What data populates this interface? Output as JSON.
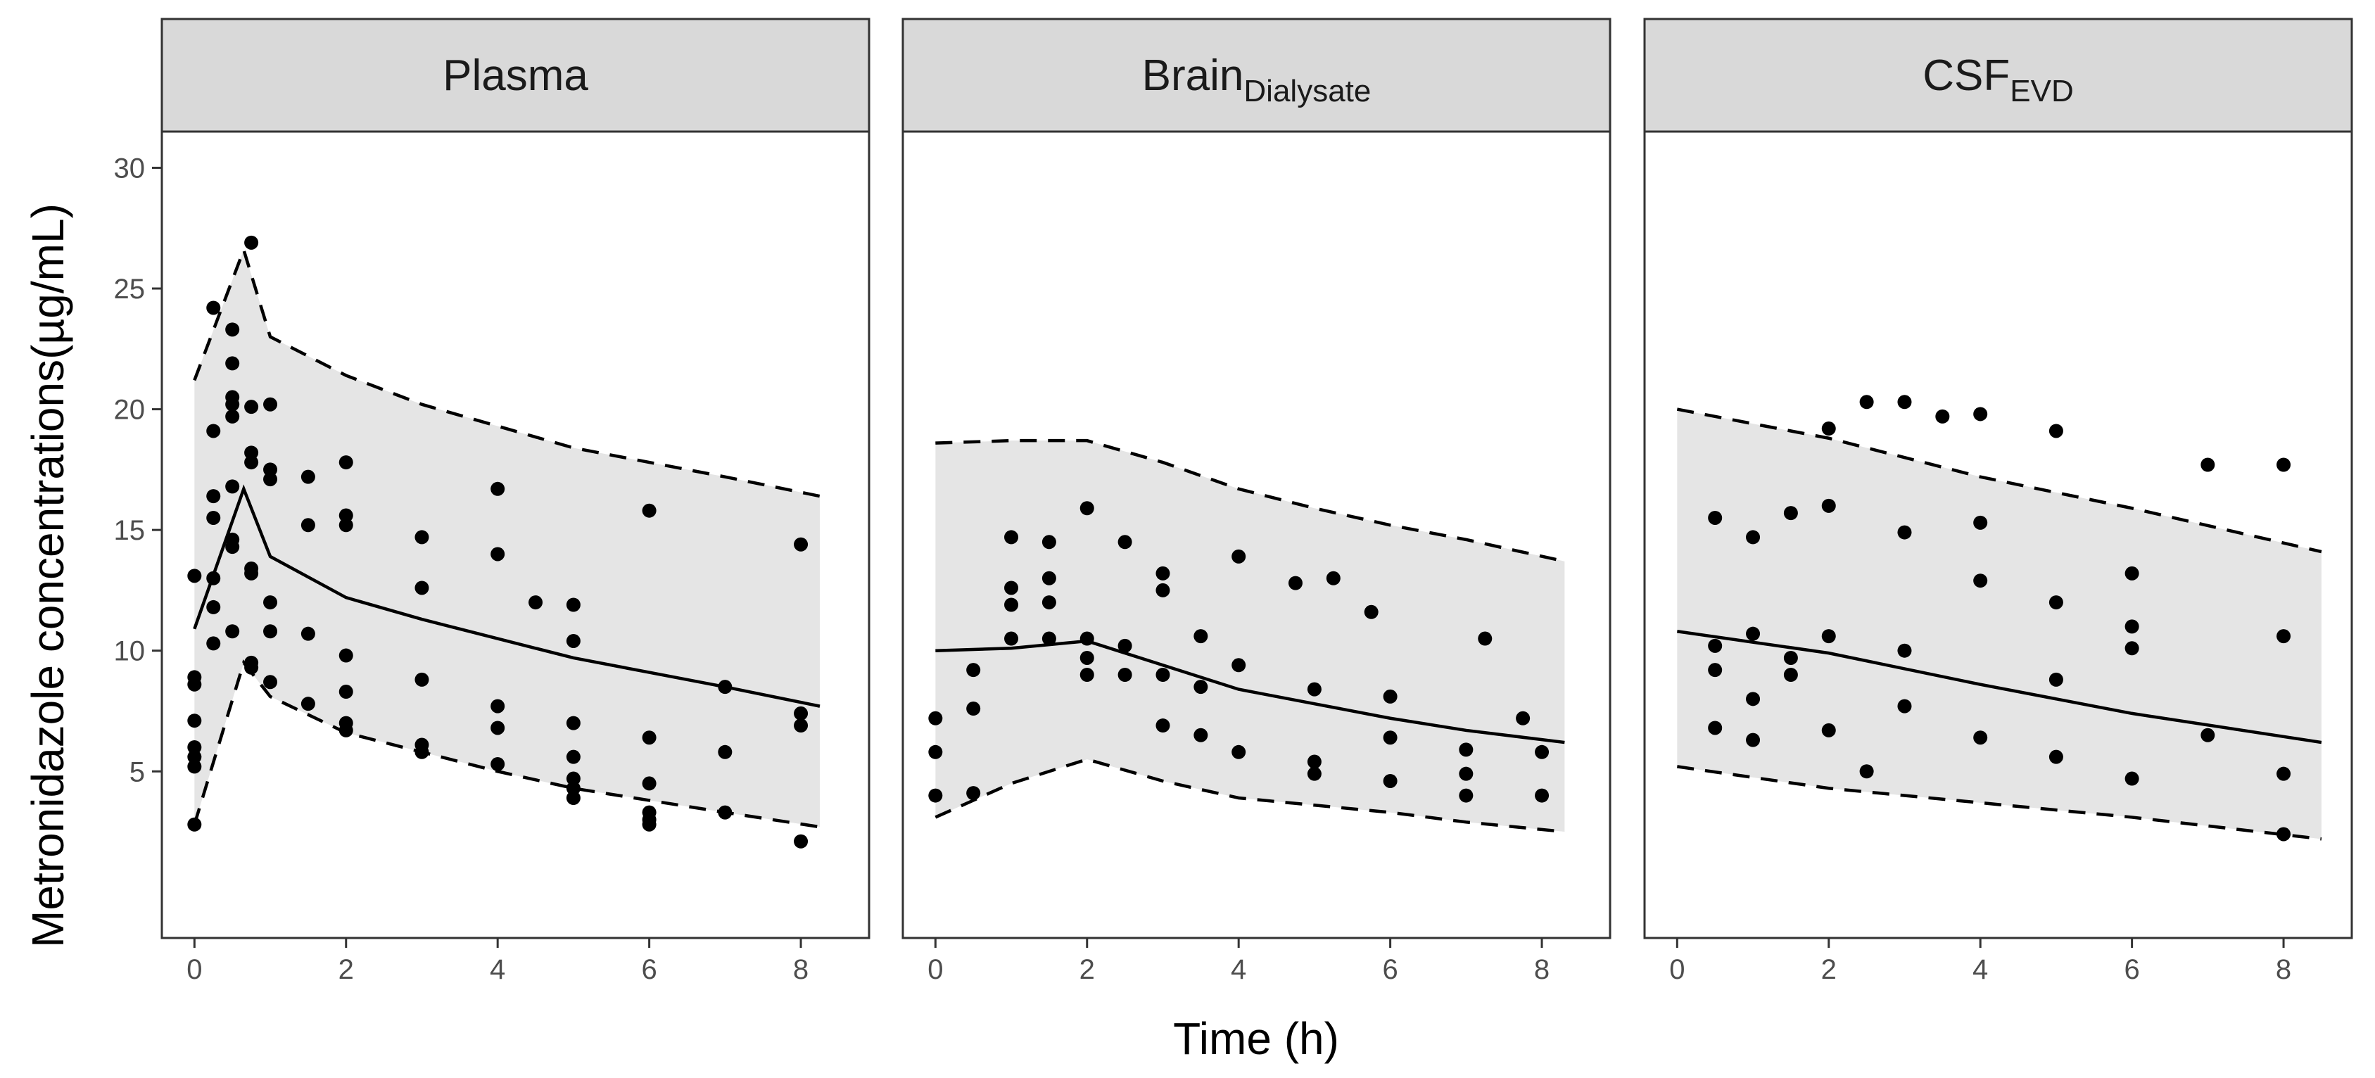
{
  "chart_data": {
    "type": "scatter",
    "xlabel": "Time (h)",
    "ylabel": "Metronidazole concentrations(µg/mL)",
    "xticks": [
      0,
      2,
      4,
      6,
      8
    ],
    "yticks": [
      5,
      10,
      15,
      20,
      25,
      30
    ],
    "xlim": [
      -0.43,
      8.9
    ],
    "ylim": [
      -1.9,
      31.5
    ],
    "panels": [
      {
        "title": "Plasma",
        "title_sub": "",
        "observed": [
          [
            0,
            2.8
          ],
          [
            0,
            5.2
          ],
          [
            0,
            5.6
          ],
          [
            0,
            6.0
          ],
          [
            0,
            7.1
          ],
          [
            0,
            8.6
          ],
          [
            0,
            8.9
          ],
          [
            0,
            13.1
          ],
          [
            0.25,
            10.3
          ],
          [
            0.25,
            11.8
          ],
          [
            0.25,
            13.0
          ],
          [
            0.25,
            15.5
          ],
          [
            0.25,
            16.4
          ],
          [
            0.25,
            19.1
          ],
          [
            0.25,
            24.2
          ],
          [
            0.5,
            10.8
          ],
          [
            0.5,
            14.3
          ],
          [
            0.5,
            14.6
          ],
          [
            0.5,
            16.8
          ],
          [
            0.5,
            19.7
          ],
          [
            0.5,
            20.2
          ],
          [
            0.5,
            20.5
          ],
          [
            0.5,
            21.9
          ],
          [
            0.5,
            23.3
          ],
          [
            0.75,
            9.3
          ],
          [
            0.75,
            9.5
          ],
          [
            0.75,
            13.2
          ],
          [
            0.75,
            13.4
          ],
          [
            0.75,
            17.8
          ],
          [
            0.75,
            18.2
          ],
          [
            0.75,
            20.1
          ],
          [
            0.75,
            26.9
          ],
          [
            1,
            8.7
          ],
          [
            1,
            10.8
          ],
          [
            1,
            12.0
          ],
          [
            1,
            17.1
          ],
          [
            1,
            17.5
          ],
          [
            1,
            20.2
          ],
          [
            1.5,
            7.8
          ],
          [
            1.5,
            10.7
          ],
          [
            1.5,
            15.2
          ],
          [
            1.5,
            17.2
          ],
          [
            2,
            6.7
          ],
          [
            2,
            7.0
          ],
          [
            2,
            8.3
          ],
          [
            2,
            9.8
          ],
          [
            2,
            15.2
          ],
          [
            2,
            15.6
          ],
          [
            2,
            17.8
          ],
          [
            3,
            5.8
          ],
          [
            3,
            6.1
          ],
          [
            3,
            8.8
          ],
          [
            3,
            12.6
          ],
          [
            3,
            14.7
          ],
          [
            4,
            5.3
          ],
          [
            4,
            6.8
          ],
          [
            4,
            7.7
          ],
          [
            4,
            14.0
          ],
          [
            4,
            16.7
          ],
          [
            4.5,
            12.0
          ],
          [
            5,
            3.9
          ],
          [
            5,
            4.3
          ],
          [
            5,
            4.7
          ],
          [
            5,
            5.6
          ],
          [
            5,
            7.0
          ],
          [
            5,
            10.4
          ],
          [
            5,
            11.9
          ],
          [
            6,
            2.8
          ],
          [
            6,
            3.0
          ],
          [
            6,
            3.3
          ],
          [
            6,
            4.5
          ],
          [
            6,
            6.4
          ],
          [
            6,
            15.8
          ],
          [
            7,
            3.3
          ],
          [
            7,
            5.8
          ],
          [
            7,
            8.5
          ],
          [
            8,
            2.1
          ],
          [
            8,
            6.9
          ],
          [
            8,
            7.4
          ],
          [
            8,
            14.4
          ]
        ],
        "median": [
          [
            0,
            10.9
          ],
          [
            0.65,
            16.7
          ],
          [
            1,
            13.9
          ],
          [
            2,
            12.2
          ],
          [
            3,
            11.3
          ],
          [
            4,
            10.5
          ],
          [
            5,
            9.7
          ],
          [
            6,
            9.1
          ],
          [
            7,
            8.5
          ],
          [
            8.25,
            7.7
          ]
        ],
        "upper": [
          [
            0,
            21.2
          ],
          [
            0.65,
            26.6
          ],
          [
            1,
            23.0
          ],
          [
            2,
            21.4
          ],
          [
            3,
            20.2
          ],
          [
            4,
            19.3
          ],
          [
            5,
            18.4
          ],
          [
            6,
            17.8
          ],
          [
            7,
            17.2
          ],
          [
            8.25,
            16.4
          ]
        ],
        "lower": [
          [
            0,
            2.8
          ],
          [
            0.65,
            9.5
          ],
          [
            1,
            8.1
          ],
          [
            2,
            6.6
          ],
          [
            3,
            5.8
          ],
          [
            4,
            5.0
          ],
          [
            5,
            4.3
          ],
          [
            6,
            3.8
          ],
          [
            7,
            3.3
          ],
          [
            8.25,
            2.7
          ]
        ]
      },
      {
        "title": "Brain",
        "title_sub": "Dialysate",
        "observed": [
          [
            0,
            4.0
          ],
          [
            0,
            5.8
          ],
          [
            0,
            7.2
          ],
          [
            0.5,
            4.1
          ],
          [
            0.5,
            7.6
          ],
          [
            0.5,
            9.2
          ],
          [
            1,
            10.5
          ],
          [
            1,
            11.9
          ],
          [
            1,
            12.6
          ],
          [
            1,
            14.7
          ],
          [
            1.5,
            10.5
          ],
          [
            1.5,
            12.0
          ],
          [
            1.5,
            13.0
          ],
          [
            1.5,
            14.5
          ],
          [
            2,
            9.0
          ],
          [
            2,
            9.7
          ],
          [
            2,
            10.5
          ],
          [
            2,
            15.9
          ],
          [
            2.5,
            9.0
          ],
          [
            2.5,
            10.2
          ],
          [
            2.5,
            14.5
          ],
          [
            3,
            6.9
          ],
          [
            3,
            9.0
          ],
          [
            3,
            12.5
          ],
          [
            3,
            13.2
          ],
          [
            3.5,
            6.5
          ],
          [
            3.5,
            8.5
          ],
          [
            3.5,
            10.6
          ],
          [
            4,
            5.8
          ],
          [
            4,
            9.4
          ],
          [
            4,
            13.9
          ],
          [
            4.75,
            12.8
          ],
          [
            5,
            4.9
          ],
          [
            5,
            5.4
          ],
          [
            5,
            8.4
          ],
          [
            5.25,
            13.0
          ],
          [
            5.75,
            11.6
          ],
          [
            6,
            4.6
          ],
          [
            6,
            6.4
          ],
          [
            6,
            8.1
          ],
          [
            7,
            4.0
          ],
          [
            7,
            4.9
          ],
          [
            7,
            5.9
          ],
          [
            7.25,
            10.5
          ],
          [
            7.75,
            7.2
          ],
          [
            8,
            4.0
          ],
          [
            8,
            5.8
          ]
        ],
        "median": [
          [
            0,
            10.0
          ],
          [
            1,
            10.1
          ],
          [
            2,
            10.4
          ],
          [
            3,
            9.4
          ],
          [
            4,
            8.4
          ],
          [
            5,
            7.8
          ],
          [
            6,
            7.2
          ],
          [
            7,
            6.7
          ],
          [
            8.3,
            6.2
          ]
        ],
        "upper": [
          [
            0,
            18.6
          ],
          [
            1,
            18.7
          ],
          [
            2,
            18.7
          ],
          [
            3,
            17.8
          ],
          [
            4,
            16.7
          ],
          [
            5,
            15.9
          ],
          [
            6,
            15.2
          ],
          [
            7,
            14.6
          ],
          [
            8.3,
            13.7
          ]
        ],
        "lower": [
          [
            0,
            3.1
          ],
          [
            1,
            4.5
          ],
          [
            2,
            5.5
          ],
          [
            3,
            4.6
          ],
          [
            4,
            3.9
          ],
          [
            5,
            3.6
          ],
          [
            6,
            3.3
          ],
          [
            7,
            2.9
          ],
          [
            8.3,
            2.5
          ]
        ]
      },
      {
        "title": "CSF",
        "title_sub": "EVD",
        "observed": [
          [
            0.5,
            6.8
          ],
          [
            0.5,
            9.2
          ],
          [
            0.5,
            10.2
          ],
          [
            0.5,
            15.5
          ],
          [
            1,
            6.3
          ],
          [
            1,
            8.0
          ],
          [
            1,
            10.7
          ],
          [
            1,
            14.7
          ],
          [
            1.5,
            9.0
          ],
          [
            1.5,
            9.7
          ],
          [
            1.5,
            15.7
          ],
          [
            2,
            6.7
          ],
          [
            2,
            10.6
          ],
          [
            2,
            16.0
          ],
          [
            2,
            19.2
          ],
          [
            2.5,
            5.0
          ],
          [
            2.5,
            20.3
          ],
          [
            3,
            7.7
          ],
          [
            3,
            10.0
          ],
          [
            3,
            14.9
          ],
          [
            3,
            20.3
          ],
          [
            3.5,
            19.7
          ],
          [
            4,
            6.4
          ],
          [
            4,
            12.9
          ],
          [
            4,
            15.3
          ],
          [
            4,
            19.8
          ],
          [
            5,
            5.6
          ],
          [
            5,
            8.8
          ],
          [
            5,
            12.0
          ],
          [
            5,
            19.1
          ],
          [
            6,
            4.7
          ],
          [
            6,
            10.1
          ],
          [
            6,
            11.0
          ],
          [
            6,
            13.2
          ],
          [
            7,
            6.5
          ],
          [
            7,
            17.7
          ],
          [
            8,
            2.4
          ],
          [
            8,
            4.9
          ],
          [
            8,
            10.6
          ],
          [
            8,
            17.7
          ]
        ],
        "median": [
          [
            0,
            10.8
          ],
          [
            2,
            9.9
          ],
          [
            4,
            8.6
          ],
          [
            6,
            7.4
          ],
          [
            8.5,
            6.2
          ]
        ],
        "upper": [
          [
            0,
            20.0
          ],
          [
            2,
            18.8
          ],
          [
            4,
            17.2
          ],
          [
            6,
            15.9
          ],
          [
            8.5,
            14.1
          ]
        ],
        "lower": [
          [
            0,
            5.2
          ],
          [
            2,
            4.3
          ],
          [
            4,
            3.7
          ],
          [
            6,
            3.1
          ],
          [
            8.5,
            2.2
          ]
        ]
      }
    ]
  }
}
